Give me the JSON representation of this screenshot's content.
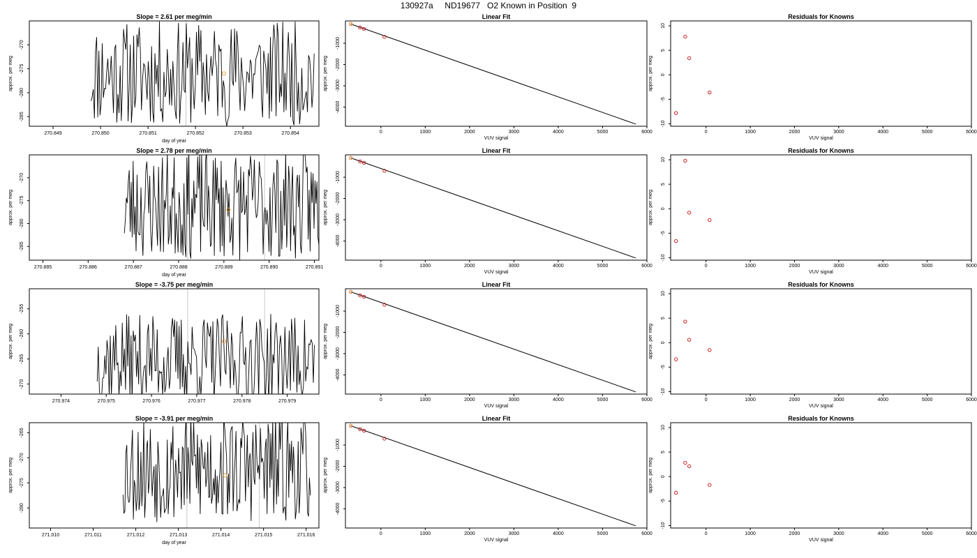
{
  "page": {
    "title": "130927a     ND19677   O2 Known in Position  9"
  },
  "colors": {
    "axis": "#000000",
    "trace": "#000000",
    "point_red": "#cc2222",
    "point_orange": "#e8a040",
    "vline": "#c8c8c8"
  },
  "chart_data": [
    {
      "type": "line",
      "panel": "trace",
      "row": 0,
      "title": "Slope =  2.61  per meg/min",
      "xlabel": "day of year",
      "ylabel": "approx. per meg",
      "xlim": [
        270.8485,
        270.8546
      ],
      "ylim": [
        -287,
        -265
      ],
      "xticks": [
        270.849,
        270.85,
        270.851,
        270.852,
        270.853,
        270.854
      ],
      "xtick_labels": [
        "270.849",
        "270.850",
        "270.851",
        "270.852",
        "270.853",
        "270.854"
      ],
      "yticks": [
        -270,
        -275,
        -280,
        -285
      ],
      "ytick_labels": [
        "-270",
        "-275",
        "-280",
        "-285"
      ],
      "trace_start": 270.8498,
      "trace_end": 270.8545,
      "trace_center": -276,
      "trace_amp": 11,
      "seed": 11,
      "vlines": [
        270.8518
      ],
      "point": {
        "x": 270.8526,
        "y": -276
      }
    },
    {
      "type": "scatter",
      "panel": "linear_fit",
      "row": 0,
      "title": "Linear Fit",
      "xlabel": "VUV signal",
      "ylabel": "approx. per meg",
      "xlim": [
        -800,
        6000
      ],
      "ylim": [
        -4900,
        50
      ],
      "xticks": [
        0,
        1000,
        2000,
        3000,
        4000,
        5000,
        6000
      ],
      "xtick_labels": [
        "0",
        "1000",
        "2000",
        "3000",
        "4000",
        "5000",
        "6000"
      ],
      "yticks": [
        -1000,
        -2000,
        -3000,
        -4000
      ],
      "ytick_labels": [
        "-1000",
        "-2000",
        "-3000",
        "-4000"
      ],
      "points": [
        {
          "x": -680,
          "y": -95,
          "color": "point_red"
        },
        {
          "x": -680,
          "y": -90,
          "color": "point_orange"
        },
        {
          "x": -470,
          "y": -260,
          "color": "point_red"
        },
        {
          "x": -380,
          "y": -325,
          "color": "point_red"
        },
        {
          "x": 80,
          "y": -700,
          "color": "point_red"
        }
      ],
      "fit_line": {
        "x": [
          -680,
          5750
        ],
        "y": [
          -95,
          -4800
        ]
      }
    },
    {
      "type": "scatter",
      "panel": "residuals",
      "row": 0,
      "title": "Residuals for Knowns",
      "xlabel": "VUV signal",
      "ylabel": "approx. per meg",
      "xlim": [
        -800,
        6000
      ],
      "ylim": [
        -10.5,
        11
      ],
      "xticks": [
        0,
        1000,
        2000,
        3000,
        4000,
        5000,
        6000
      ],
      "xtick_labels": [
        "0",
        "1000",
        "2000",
        "3000",
        "4000",
        "5000",
        "6000"
      ],
      "yticks": [
        10,
        5,
        0,
        -5,
        -10
      ],
      "ytick_labels": [
        "10",
        "5",
        "0",
        "-5",
        "-10"
      ],
      "points": [
        {
          "x": -680,
          "y": -7.8
        },
        {
          "x": -470,
          "y": 7.8
        },
        {
          "x": -380,
          "y": 3.4
        },
        {
          "x": 80,
          "y": -3.6
        }
      ]
    },
    {
      "type": "line",
      "panel": "trace",
      "row": 1,
      "title": "Slope =  2.78  per meg/min",
      "xlabel": "day of year",
      "ylabel": "approx. per meg",
      "xlim": [
        270.8847,
        270.8911
      ],
      "ylim": [
        -288,
        -265
      ],
      "xticks": [
        270.885,
        270.886,
        270.887,
        270.888,
        270.889,
        270.89,
        270.891
      ],
      "xtick_labels": [
        "270.885",
        "270.886",
        "270.887",
        "270.888",
        "270.889",
        "270.890",
        "270.891"
      ],
      "yticks": [
        -270,
        -275,
        -280,
        -285
      ],
      "ytick_labels": [
        "-270",
        "-275",
        "-280",
        "-285"
      ],
      "trace_start": 270.8868,
      "trace_end": 270.8911,
      "trace_center": -276,
      "trace_amp": 12,
      "seed": 23,
      "vlines": [
        270.8882,
        270.8899
      ],
      "point": {
        "x": 270.8891,
        "y": -277
      }
    },
    {
      "type": "scatter",
      "panel": "linear_fit",
      "row": 1,
      "title": "Linear Fit",
      "xlabel": "VUV signal",
      "ylabel": "approx. per meg",
      "xlim": [
        -800,
        6000
      ],
      "ylim": [
        -4900,
        50
      ],
      "xticks": [
        0,
        1000,
        2000,
        3000,
        4000,
        5000,
        6000
      ],
      "xtick_labels": [
        "0",
        "1000",
        "2000",
        "3000",
        "4000",
        "5000",
        "6000"
      ],
      "yticks": [
        -1000,
        -2000,
        -3000,
        -4000
      ],
      "ytick_labels": [
        "-1000",
        "-2000",
        "-3000",
        "-4000"
      ],
      "points": [
        {
          "x": -680,
          "y": -95,
          "color": "point_red"
        },
        {
          "x": -680,
          "y": -90,
          "color": "point_orange"
        },
        {
          "x": -470,
          "y": -260,
          "color": "point_red"
        },
        {
          "x": -380,
          "y": -325,
          "color": "point_red"
        },
        {
          "x": 80,
          "y": -700,
          "color": "point_red"
        }
      ],
      "fit_line": {
        "x": [
          -680,
          5750
        ],
        "y": [
          -95,
          -4800
        ]
      }
    },
    {
      "type": "scatter",
      "panel": "residuals",
      "row": 1,
      "title": "Residuals for Knowns",
      "xlabel": "VUV signal",
      "ylabel": "approx. per meg",
      "xlim": [
        -800,
        6000
      ],
      "ylim": [
        -10.5,
        11
      ],
      "xticks": [
        0,
        1000,
        2000,
        3000,
        4000,
        5000,
        6000
      ],
      "xtick_labels": [
        "0",
        "1000",
        "2000",
        "3000",
        "4000",
        "5000",
        "6000"
      ],
      "yticks": [
        10,
        5,
        0,
        -5,
        -10
      ],
      "ytick_labels": [
        "10",
        "5",
        "0",
        "-5",
        "-10"
      ],
      "points": [
        {
          "x": -680,
          "y": -6.6
        },
        {
          "x": -470,
          "y": 9.8
        },
        {
          "x": -380,
          "y": -0.8
        },
        {
          "x": 80,
          "y": -2.3
        }
      ]
    },
    {
      "type": "line",
      "panel": "trace",
      "row": 2,
      "title": "Slope =  -3.75  per meg/min",
      "xlabel": "",
      "ylabel": "approx. per meg",
      "xlim": [
        270.9733,
        270.9797
      ],
      "ylim": [
        -272,
        -251
      ],
      "xticks": [
        270.974,
        270.975,
        270.976,
        270.977,
        270.978,
        270.979
      ],
      "xtick_labels": [
        "270.974",
        "270.975",
        "270.976",
        "270.977",
        "270.978",
        "270.979"
      ],
      "yticks": [
        -255,
        -260,
        -265,
        -270
      ],
      "ytick_labels": [
        "-255",
        "-260",
        "-265",
        "-270"
      ],
      "trace_start": 270.9748,
      "trace_end": 270.9796,
      "trace_center": -265,
      "trace_amp": 9,
      "seed": 37,
      "vlines": [
        270.9768,
        270.9785
      ],
      "point": {
        "x": 270.9776,
        "y": -261.5
      }
    },
    {
      "type": "scatter",
      "panel": "linear_fit",
      "row": 2,
      "title": "Linear Fit",
      "xlabel": "VUV signal",
      "ylabel": "approx. per meg",
      "xlim": [
        -800,
        6000
      ],
      "ylim": [
        -4900,
        50
      ],
      "xticks": [
        0,
        1000,
        2000,
        3000,
        4000,
        5000,
        6000
      ],
      "xtick_labels": [
        "0",
        "1000",
        "2000",
        "3000",
        "4000",
        "5000",
        "6000"
      ],
      "yticks": [
        -1000,
        -2000,
        -3000,
        -4000
      ],
      "ytick_labels": [
        "-1000",
        "-2000",
        "-3000",
        "-4000"
      ],
      "points": [
        {
          "x": -680,
          "y": -95,
          "color": "point_red"
        },
        {
          "x": -680,
          "y": -90,
          "color": "point_orange"
        },
        {
          "x": -470,
          "y": -260,
          "color": "point_red"
        },
        {
          "x": -380,
          "y": -325,
          "color": "point_red"
        },
        {
          "x": 80,
          "y": -700,
          "color": "point_red"
        }
      ],
      "fit_line": {
        "x": [
          -680,
          5750
        ],
        "y": [
          -95,
          -4800
        ]
      }
    },
    {
      "type": "scatter",
      "panel": "residuals",
      "row": 2,
      "title": "Residuals for Knowns",
      "xlabel": "VUV signal",
      "ylabel": "approx. per meg",
      "xlim": [
        -800,
        6000
      ],
      "ylim": [
        -10.5,
        11
      ],
      "xticks": [
        0,
        1000,
        2000,
        3000,
        4000,
        5000,
        6000
      ],
      "xtick_labels": [
        "0",
        "1000",
        "2000",
        "3000",
        "4000",
        "5000",
        "6000"
      ],
      "yticks": [
        10,
        5,
        0,
        -5,
        -10
      ],
      "ytick_labels": [
        "10",
        "5",
        "0",
        "-5",
        "-10"
      ],
      "points": [
        {
          "x": -680,
          "y": -3.4
        },
        {
          "x": -470,
          "y": 4.3
        },
        {
          "x": -380,
          "y": 0.6
        },
        {
          "x": 80,
          "y": -1.5
        }
      ]
    },
    {
      "type": "line",
      "panel": "trace",
      "row": 3,
      "title": "Slope =  -3.91  per meg/min",
      "xlabel": "day of year",
      "ylabel": "approx. per meg",
      "xlim": [
        271.0095,
        271.0163
      ],
      "ylim": [
        -284,
        -263
      ],
      "xticks": [
        271.01,
        271.011,
        271.012,
        271.013,
        271.014,
        271.015,
        271.016
      ],
      "xtick_labels": [
        "271.010",
        "271.011",
        "271.012",
        "271.013",
        "271.014",
        "271.015",
        "271.016"
      ],
      "yticks": [
        -265,
        -270,
        -275,
        -280
      ],
      "ytick_labels": [
        "-265",
        "-270",
        "-275",
        "-280"
      ],
      "trace_start": 271.0117,
      "trace_end": 271.0161,
      "trace_center": -272,
      "trace_amp": 11,
      "seed": 53,
      "vlines": [
        271.0132,
        271.0149
      ],
      "point": {
        "x": 271.0141,
        "y": -273.5
      }
    },
    {
      "type": "scatter",
      "panel": "linear_fit",
      "row": 3,
      "title": "Linear Fit",
      "xlabel": "VUV signal",
      "ylabel": "approx. per meg",
      "xlim": [
        -800,
        6000
      ],
      "ylim": [
        -4900,
        50
      ],
      "xticks": [
        0,
        1000,
        2000,
        3000,
        4000,
        5000,
        6000
      ],
      "xtick_labels": [
        "0",
        "1000",
        "2000",
        "3000",
        "4000",
        "5000",
        "6000"
      ],
      "yticks": [
        -1000,
        -2000,
        -3000,
        -4000
      ],
      "ytick_labels": [
        "-1000",
        "-2000",
        "-3000",
        "-4000"
      ],
      "points": [
        {
          "x": -680,
          "y": -95,
          "color": "point_red"
        },
        {
          "x": -680,
          "y": -90,
          "color": "point_orange"
        },
        {
          "x": -470,
          "y": -260,
          "color": "point_red"
        },
        {
          "x": -380,
          "y": -325,
          "color": "point_red"
        },
        {
          "x": 80,
          "y": -700,
          "color": "point_red"
        }
      ],
      "fit_line": {
        "x": [
          -680,
          5750
        ],
        "y": [
          -95,
          -4800
        ]
      }
    },
    {
      "type": "scatter",
      "panel": "residuals",
      "row": 3,
      "title": "Residuals for Knowns",
      "xlabel": "VUV signal",
      "ylabel": "approx. per meg",
      "xlim": [
        -800,
        6000
      ],
      "ylim": [
        -10.5,
        11
      ],
      "xticks": [
        0,
        1000,
        2000,
        3000,
        4000,
        5000,
        6000
      ],
      "xtick_labels": [
        "0",
        "1000",
        "2000",
        "3000",
        "4000",
        "5000",
        "6000"
      ],
      "yticks": [
        10,
        5,
        0,
        -5,
        -10
      ],
      "ytick_labels": [
        "10",
        "5",
        "0",
        "-5",
        "-10"
      ],
      "points": [
        {
          "x": -680,
          "y": -3.3
        },
        {
          "x": -470,
          "y": 2.8
        },
        {
          "x": -380,
          "y": 2.1
        },
        {
          "x": 80,
          "y": -1.7
        }
      ]
    }
  ]
}
